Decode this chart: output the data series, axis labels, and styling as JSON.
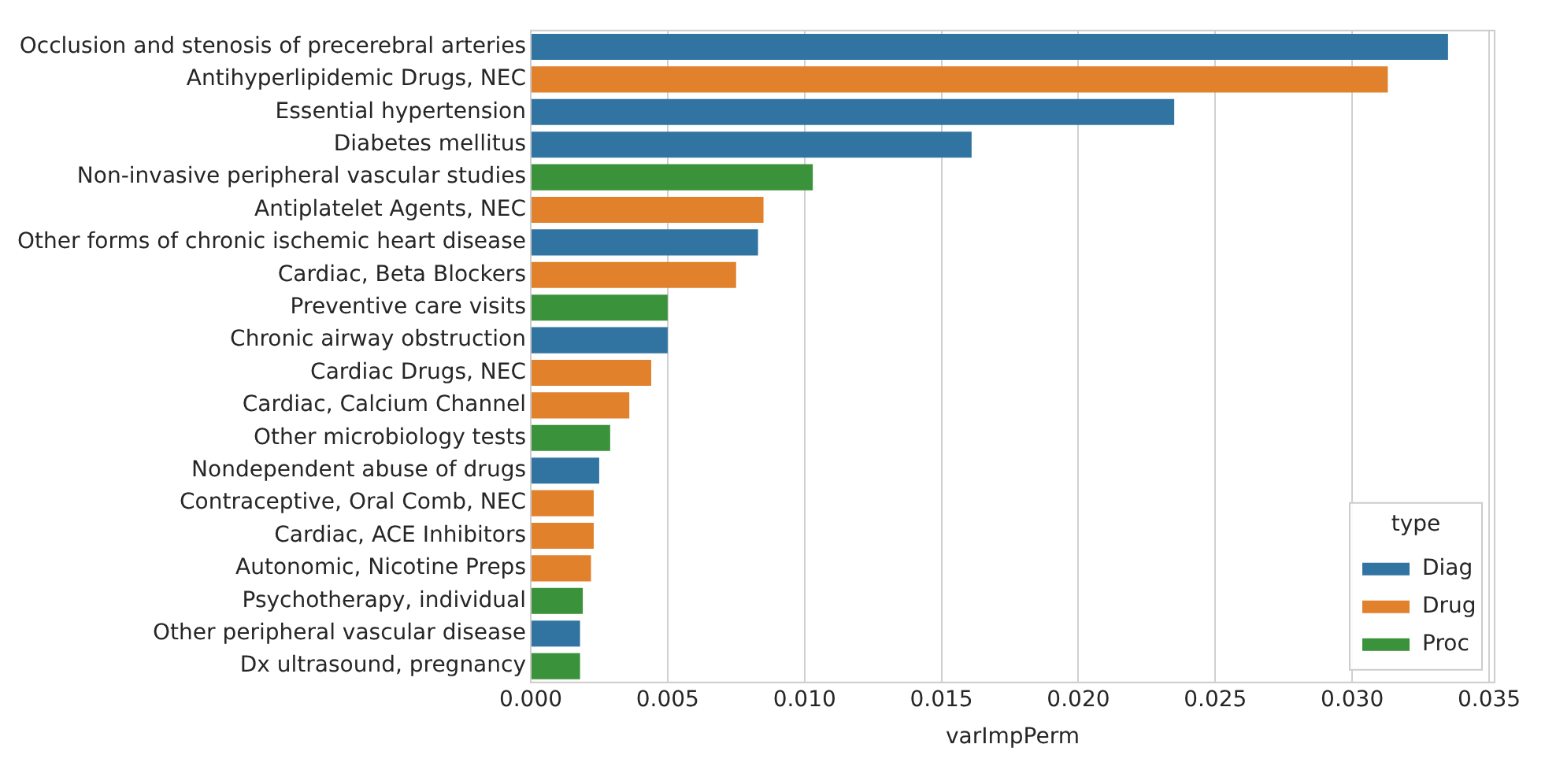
{
  "chart_data": {
    "type": "bar",
    "orientation": "horizontal",
    "xlabel": "varImpPerm",
    "legend_title": "type",
    "legend": "bottom right",
    "grid": "x",
    "categories": [
      "Occlusion and stenosis of precerebral arteries",
      "Antihyperlipidemic Drugs, NEC",
      "Essential hypertension",
      "Diabetes mellitus",
      "Non-invasive peripheral vascular studies",
      "Antiplatelet Agents, NEC",
      "Other forms of chronic ischemic heart disease",
      "Cardiac, Beta Blockers",
      "Preventive care visits",
      "Chronic airway obstruction",
      "Cardiac Drugs, NEC",
      "Cardiac, Calcium Channel",
      "Other microbiology tests",
      "Nondependent abuse of drugs",
      "Contraceptive, Oral Comb, NEC",
      "Cardiac, ACE Inhibitors",
      "Autonomic, Nicotine Preps",
      "Psychotherapy, individual",
      "Other peripheral vascular disease",
      "Dx ultrasound, pregnancy"
    ],
    "series": [
      {
        "name": "Diag",
        "color": "#3274a1",
        "values": [
          0.0335,
          null,
          0.0235,
          0.0161,
          null,
          null,
          0.0083,
          null,
          null,
          0.005,
          null,
          null,
          null,
          0.0025,
          null,
          null,
          null,
          null,
          0.0018,
          null
        ]
      },
      {
        "name": "Drug",
        "color": "#e1812c",
        "values": [
          null,
          0.0313,
          null,
          null,
          null,
          0.0085,
          null,
          0.0075,
          null,
          null,
          0.0044,
          0.0036,
          null,
          null,
          0.0023,
          0.0023,
          0.0022,
          null,
          null,
          null
        ]
      },
      {
        "name": "Proc",
        "color": "#3a923a",
        "values": [
          null,
          null,
          null,
          null,
          0.0103,
          null,
          null,
          null,
          0.005,
          null,
          null,
          null,
          0.0029,
          null,
          null,
          null,
          null,
          0.0019,
          null,
          0.0018
        ]
      }
    ],
    "xlim": [
      0,
      0.0352
    ],
    "xticks": [
      {
        "value": 0,
        "label": "0.000"
      },
      {
        "value": 0.005,
        "label": "0.005"
      },
      {
        "value": 0.01,
        "label": "0.010"
      },
      {
        "value": 0.015,
        "label": "0.015"
      },
      {
        "value": 0.02,
        "label": "0.020"
      },
      {
        "value": 0.025,
        "label": "0.025"
      },
      {
        "value": 0.03,
        "label": "0.030"
      },
      {
        "value": 0.035,
        "label": "0.035"
      }
    ]
  }
}
